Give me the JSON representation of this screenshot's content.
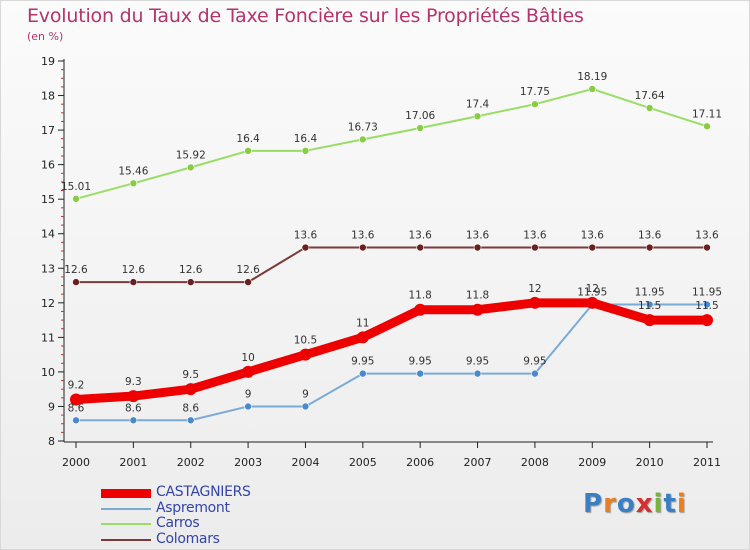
{
  "title": "Evolution du Taux de Taxe Foncière sur les Propriétés Bâties",
  "subtitle": "(en %)",
  "logo": {
    "text": "Proxiti",
    "colors": [
      "#3a7fc4",
      "#e8801f",
      "#3a7fc4",
      "#d62f2f",
      "#7bb23a",
      "#3a7fc4",
      "#e8801f"
    ]
  },
  "chart_data": {
    "type": "line",
    "title": "Evolution du Taux de Taxe Foncière sur les Propriétés Bâties",
    "ylabel": "(en %)",
    "x": [
      "2000",
      "2001",
      "2002",
      "2003",
      "2004",
      "2005",
      "2006",
      "2007",
      "2008",
      "2009",
      "2010",
      "2011"
    ],
    "ylim": [
      8,
      19
    ],
    "yticks": [
      "8",
      "9",
      "10",
      "11",
      "12",
      "13",
      "14",
      "15",
      "16",
      "17",
      "18",
      "19"
    ],
    "grid": false,
    "legend_position": "bottom-left",
    "series": [
      {
        "name": "Carros",
        "color": "#99dd66",
        "marker_color": "#88cc44",
        "values": [
          15.01,
          15.46,
          15.92,
          16.4,
          16.4,
          16.73,
          17.06,
          17.4,
          17.75,
          18.19,
          17.64,
          17.11
        ],
        "labels": [
          "15.01",
          "15.46",
          "15.92",
          "16.4",
          "16.4",
          "16.73",
          "17.06",
          "17.4",
          "17.75",
          "18.19",
          "17.64",
          "17.11"
        ]
      },
      {
        "name": "Colomars",
        "color": "#7a3a3a",
        "marker_color": "#6a2020",
        "values": [
          12.6,
          12.6,
          12.6,
          12.6,
          13.6,
          13.6,
          13.6,
          13.6,
          13.6,
          13.6,
          13.6,
          13.6
        ],
        "labels": [
          "12.6",
          "12.6",
          "12.6",
          "12.6",
          "13.6",
          "13.6",
          "13.6",
          "13.6",
          "13.6",
          "13.6",
          "13.6",
          "13.6"
        ]
      },
      {
        "name": "Aspremont",
        "color": "#7aaad6",
        "marker_color": "#4a8acc",
        "values": [
          8.6,
          8.6,
          8.6,
          9,
          9,
          9.95,
          9.95,
          9.95,
          9.95,
          11.95,
          11.95,
          11.95
        ],
        "labels": [
          "8.6",
          "8.6",
          "8.6",
          "9",
          "9",
          "9.95",
          "9.95",
          "9.95",
          "9.95",
          "11.95",
          "11.95",
          "11.95"
        ]
      },
      {
        "name": "CASTAGNIERS",
        "color": "#ee0000",
        "marker_color": "#ee0000",
        "values": [
          9.2,
          9.3,
          9.5,
          10,
          10.5,
          11,
          11.8,
          11.8,
          12,
          12,
          11.5,
          11.5
        ],
        "labels": [
          "9.2",
          "9.3",
          "9.5",
          "10",
          "10.5",
          "11",
          "11.8",
          "11.8",
          "12",
          "12",
          "11.5",
          "11.5"
        ]
      }
    ],
    "legend": [
      "CASTAGNIERS",
      "Aspremont",
      "Carros",
      "Colomars"
    ]
  }
}
